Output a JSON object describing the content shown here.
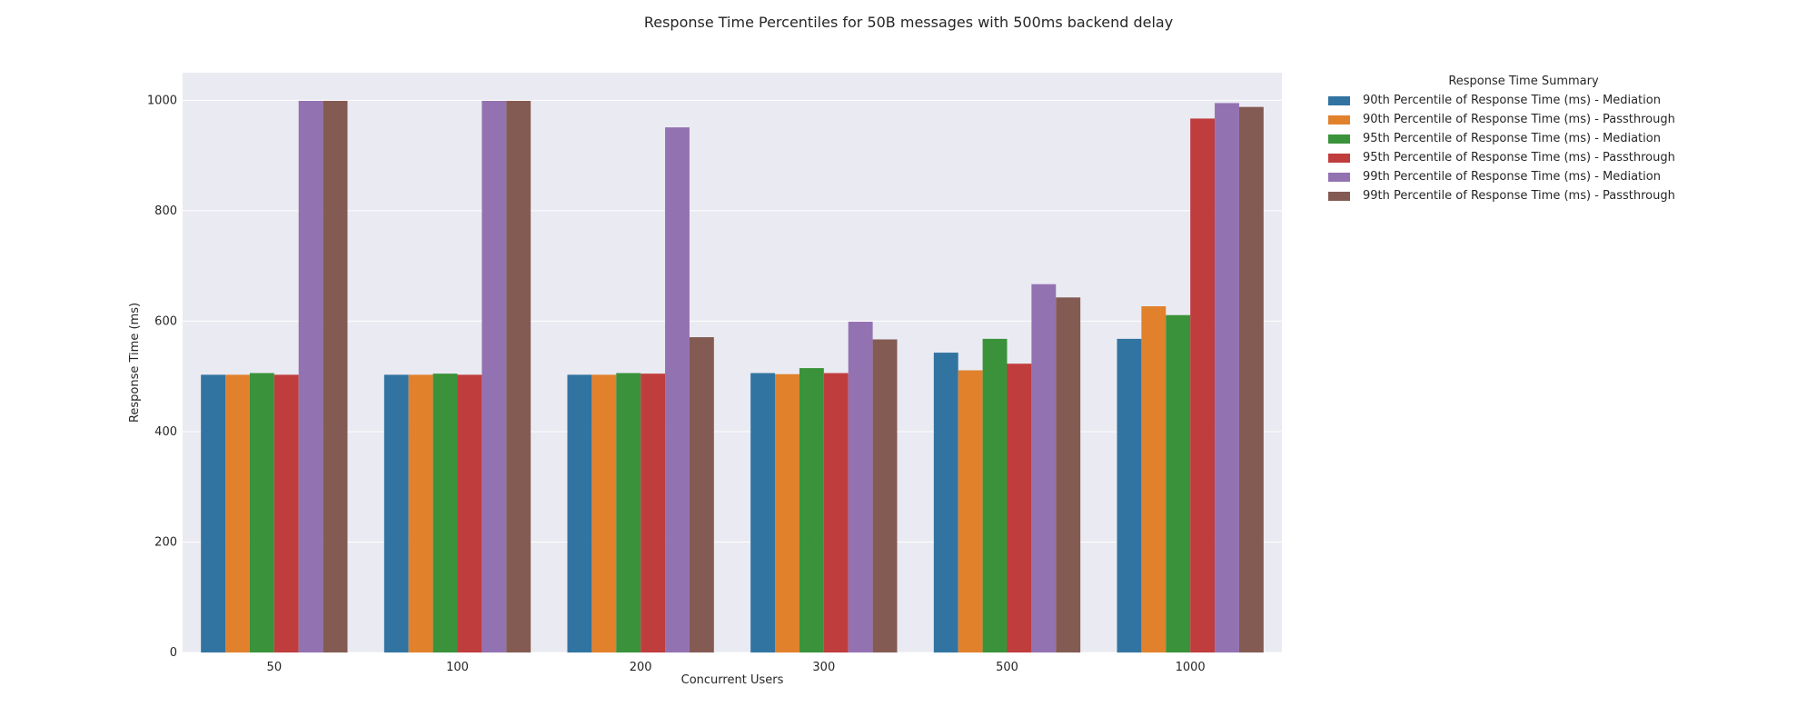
{
  "chart_data": {
    "type": "bar",
    "title": "Response Time Percentiles for 50B messages with 500ms backend delay",
    "xlabel": "Concurrent Users",
    "ylabel": "Response Time (ms)",
    "ylim": [
      0,
      1050
    ],
    "yticks": [
      0,
      200,
      400,
      600,
      800,
      1000
    ],
    "grid": true,
    "legend_title": "Response Time Summary",
    "legend_placement": "outside-right",
    "categories": [
      "50",
      "100",
      "200",
      "300",
      "500",
      "1000"
    ],
    "series": [
      {
        "name": "90th Percentile of Response Time (ms) - Mediation",
        "color": "#3274a1",
        "values": [
          503,
          503,
          503,
          506,
          543,
          568
        ]
      },
      {
        "name": "90th Percentile of Response Time (ms) - Passthrough",
        "color": "#e1812c",
        "values": [
          503,
          503,
          503,
          504,
          511,
          627
        ]
      },
      {
        "name": "95th Percentile of Response Time (ms) - Mediation",
        "color": "#3a923a",
        "values": [
          506,
          505,
          506,
          515,
          568,
          611
        ]
      },
      {
        "name": "95th Percentile of Response Time (ms) - Passthrough",
        "color": "#c03d3e",
        "values": [
          503,
          503,
          505,
          506,
          523,
          967
        ]
      },
      {
        "name": "99th Percentile of Response Time (ms) - Mediation",
        "color": "#9372b2",
        "values": [
          999,
          999,
          951,
          599,
          667,
          995
        ]
      },
      {
        "name": "99th Percentile of Response Time (ms) - Passthrough",
        "color": "#845b53",
        "values": [
          999,
          999,
          571,
          567,
          643,
          988
        ]
      }
    ]
  }
}
